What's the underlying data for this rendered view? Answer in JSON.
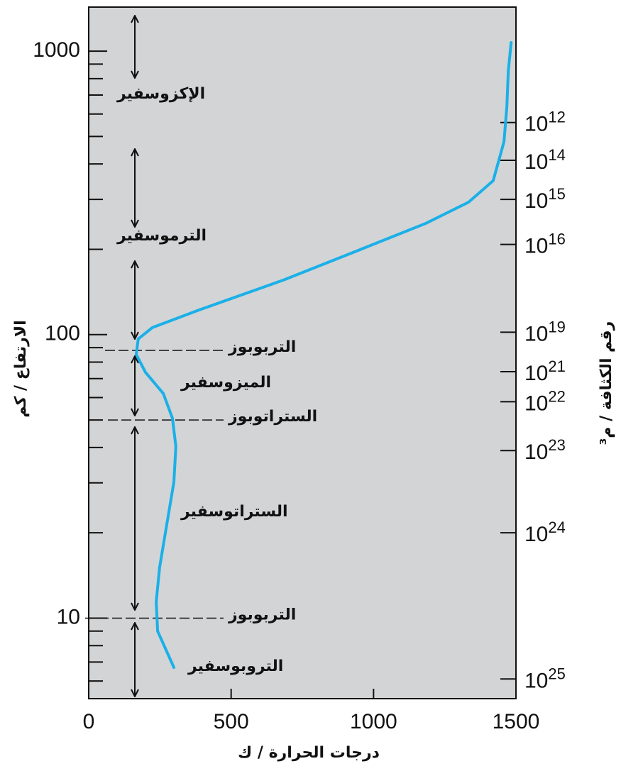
{
  "chart_data": {
    "type": "line",
    "x_label": "درجات الحرارة / ك",
    "y_label": "الارتفاع / كم",
    "y2_label": "رقم الكثافة / م³",
    "y_scale": "log",
    "xlim": [
      0,
      1500
    ],
    "xticks": [
      0,
      500,
      1000,
      1500
    ],
    "ylim": [
      5.2,
      1430
    ],
    "yticks": [
      10,
      100,
      1000
    ],
    "yminorticks": [
      6,
      7,
      8,
      9,
      20,
      30,
      40,
      50,
      60,
      70,
      80,
      90,
      200,
      300,
      400,
      500,
      600,
      700,
      800,
      900
    ],
    "y2ticks": [
      {
        "value": 560,
        "label": "10",
        "exponent": "12"
      },
      {
        "value": 412,
        "label": "10",
        "exponent": "14"
      },
      {
        "value": 300,
        "label": "10",
        "exponent": "15"
      },
      {
        "value": 208,
        "label": "10",
        "exponent": "16"
      },
      {
        "value": 102,
        "label": "10",
        "exponent": "19"
      },
      {
        "value": 74,
        "label": "10",
        "exponent": "21"
      },
      {
        "value": 58,
        "label": "10",
        "exponent": "22"
      },
      {
        "value": 39,
        "label": "10",
        "exponent": "23"
      },
      {
        "value": 20,
        "label": "10",
        "exponent": "24"
      },
      {
        "value": 6.1,
        "label": "10",
        "exponent": "25"
      }
    ],
    "series": [
      {
        "color": "#1ab0e8",
        "x": [
          299,
          242,
          237,
          249,
          274,
          299,
          306,
          294,
          262,
          199,
          167,
          174,
          224,
          386,
          685,
          934,
          1184,
          1333,
          1420,
          1458,
          1468,
          1473,
          1483
        ],
        "values": [
          6.7,
          9.0,
          11.4,
          15.1,
          21.4,
          30.2,
          40.3,
          50.7,
          62,
          73.7,
          85.1,
          96.6,
          106,
          122,
          156,
          196,
          247,
          293,
          349,
          479,
          638,
          851,
          1072
        ]
      }
    ],
    "boundaries": [
      {
        "label": "التربوبوز",
        "altitude": 88
      },
      {
        "label": "الستراتوبوز",
        "altitude": 50
      },
      {
        "label": "التربوبوز",
        "altitude": 10
      }
    ],
    "layers": [
      "الإكزوسفير",
      "الترموسفير",
      "الميزوسفير",
      "الستراتوسفير",
      "التروبوسفير"
    ]
  }
}
